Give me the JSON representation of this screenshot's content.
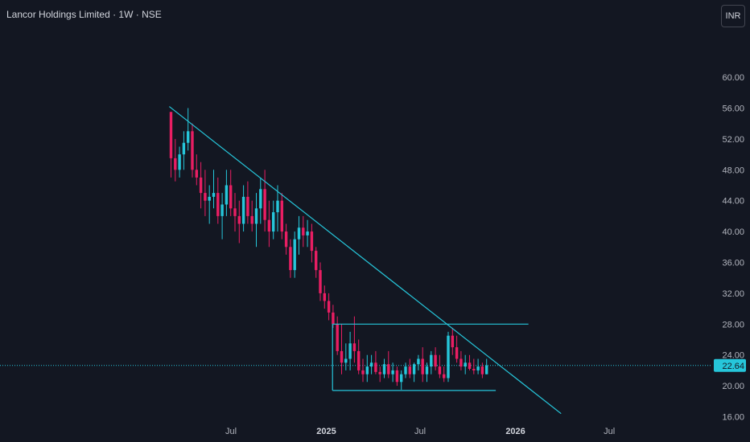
{
  "header": {
    "title": "Lancor Holdings Limited · 1W · NSE",
    "currency": "INR"
  },
  "chart_data": {
    "type": "candlestick",
    "ylim": [
      16,
      62
    ],
    "y_ticks": [
      60,
      56,
      52,
      48,
      44,
      40,
      36,
      32,
      28,
      24,
      20,
      16
    ],
    "y_tick_labels": [
      "60.00",
      "56.00",
      "52.00",
      "48.00",
      "44.00",
      "40.00",
      "36.00",
      "32.00",
      "28.00",
      "24.00",
      "20.00",
      "16.00"
    ],
    "x_labels": [
      {
        "text": "Jul",
        "bold": false,
        "date": "2024-07-01"
      },
      {
        "text": "2025",
        "bold": true,
        "date": "2025-01-01"
      },
      {
        "text": "Jul",
        "bold": false,
        "date": "2025-07-01"
      },
      {
        "text": "2026",
        "bold": true,
        "date": "2026-01-01"
      },
      {
        "text": "Jul",
        "bold": false,
        "date": "2026-07-01"
      }
    ],
    "last_price": 22.64,
    "last_price_label": "22.64",
    "up_color": "#26c6da",
    "down_color": "#e91e63",
    "line_color": "#26c6da",
    "candles": [
      [
        55.5,
        55.5,
        47,
        49.5
      ],
      [
        49.5,
        52,
        46.5,
        48
      ],
      [
        48,
        51,
        47,
        50
      ],
      [
        50,
        53,
        48,
        51.5
      ],
      [
        51.5,
        56,
        50.5,
        53
      ],
      [
        53,
        54,
        47,
        48
      ],
      [
        48,
        50,
        46,
        47
      ],
      [
        47,
        49,
        43,
        45
      ],
      [
        45,
        48,
        42,
        44
      ],
      [
        44,
        46,
        41,
        44.5
      ],
      [
        44.5,
        48,
        43,
        45
      ],
      [
        45,
        47,
        41,
        42
      ],
      [
        42,
        45,
        39,
        43.5
      ],
      [
        43.5,
        48,
        42,
        46
      ],
      [
        46,
        48,
        42,
        43
      ],
      [
        43,
        45,
        40,
        42
      ],
      [
        42,
        44,
        38.5,
        41
      ],
      [
        41,
        46,
        40,
        44.5
      ],
      [
        44.5,
        46.5,
        41,
        42
      ],
      [
        42,
        44,
        40,
        41
      ],
      [
        41,
        45,
        38,
        43
      ],
      [
        43,
        47,
        41,
        45.5
      ],
      [
        45.5,
        48,
        40,
        41.5
      ],
      [
        41.5,
        44,
        38,
        40
      ],
      [
        40,
        44,
        39,
        42.5
      ],
      [
        42.5,
        46,
        40,
        44
      ],
      [
        44,
        45,
        39,
        40
      ],
      [
        40,
        41,
        37,
        38
      ],
      [
        38,
        39,
        34,
        35
      ],
      [
        35,
        40,
        34,
        39
      ],
      [
        39,
        42,
        37,
        40.5
      ],
      [
        40.5,
        42,
        38,
        39.5
      ],
      [
        39.5,
        41.5,
        38,
        40
      ],
      [
        40,
        41,
        36,
        37.5
      ],
      [
        37.5,
        38,
        34,
        35
      ],
      [
        35,
        36,
        31,
        32
      ],
      [
        32,
        33,
        30,
        31
      ],
      [
        31,
        32,
        28.5,
        29.5
      ],
      [
        29.5,
        30.5,
        27.5,
        28
      ],
      [
        28,
        29,
        24,
        24.5
      ],
      [
        24.5,
        28,
        21.5,
        23
      ],
      [
        23,
        25.5,
        22,
        23.5
      ],
      [
        23.5,
        27,
        22,
        25.5
      ],
      [
        25.5,
        29,
        23,
        24.5
      ],
      [
        24.5,
        26,
        21.5,
        22
      ],
      [
        22,
        23.5,
        20.5,
        21.5
      ],
      [
        21.5,
        24,
        20.5,
        22.5
      ],
      [
        22.5,
        24,
        21.5,
        23
      ],
      [
        23,
        24.5,
        21.5,
        21.8
      ],
      [
        21.8,
        22.5,
        20.5,
        21.5
      ],
      [
        21.5,
        23.5,
        21,
        22.8
      ],
      [
        22.8,
        24.5,
        21,
        21.5
      ],
      [
        21.5,
        23,
        20.5,
        22
      ],
      [
        22,
        22.5,
        20,
        20.5
      ],
      [
        20.5,
        22,
        19.5,
        21.5
      ],
      [
        21.5,
        23,
        21,
        22.5
      ],
      [
        22.5,
        23.5,
        21,
        21.5
      ],
      [
        21.5,
        23,
        20.5,
        22.8
      ],
      [
        22.8,
        24,
        22,
        23.5
      ],
      [
        23.5,
        25,
        20.5,
        21.5
      ],
      [
        21.5,
        23,
        20.5,
        22.5
      ],
      [
        22.5,
        24.5,
        21.5,
        24
      ],
      [
        24,
        25,
        22,
        22.5
      ],
      [
        22.5,
        24,
        21,
        21.5
      ],
      [
        21.5,
        22.5,
        20.5,
        21
      ],
      [
        21,
        27,
        20.5,
        26.5
      ],
      [
        26.5,
        27.5,
        24,
        25
      ],
      [
        25,
        26.5,
        23,
        23.5
      ],
      [
        23.5,
        24.5,
        22,
        22.5
      ],
      [
        22.5,
        24,
        21.5,
        23
      ],
      [
        23,
        24,
        22,
        22.2
      ],
      [
        22.2,
        23.5,
        21.5,
        22
      ],
      [
        22,
        23.5,
        21.5,
        22.5
      ],
      [
        22.5,
        23,
        21,
        21.5
      ],
      [
        21.5,
        23.5,
        21.5,
        22.64
      ]
    ],
    "trendline": {
      "start": {
        "date": "2024-03-04",
        "price": 56.2
      },
      "end": {
        "date": "2026-03-30",
        "price": 16.4
      }
    },
    "range_box": {
      "top": 28,
      "bottom": 19.4,
      "start_date": "2025-01-13",
      "end_date": "2025-11-24",
      "top_end_date": "2026-01-26"
    }
  }
}
